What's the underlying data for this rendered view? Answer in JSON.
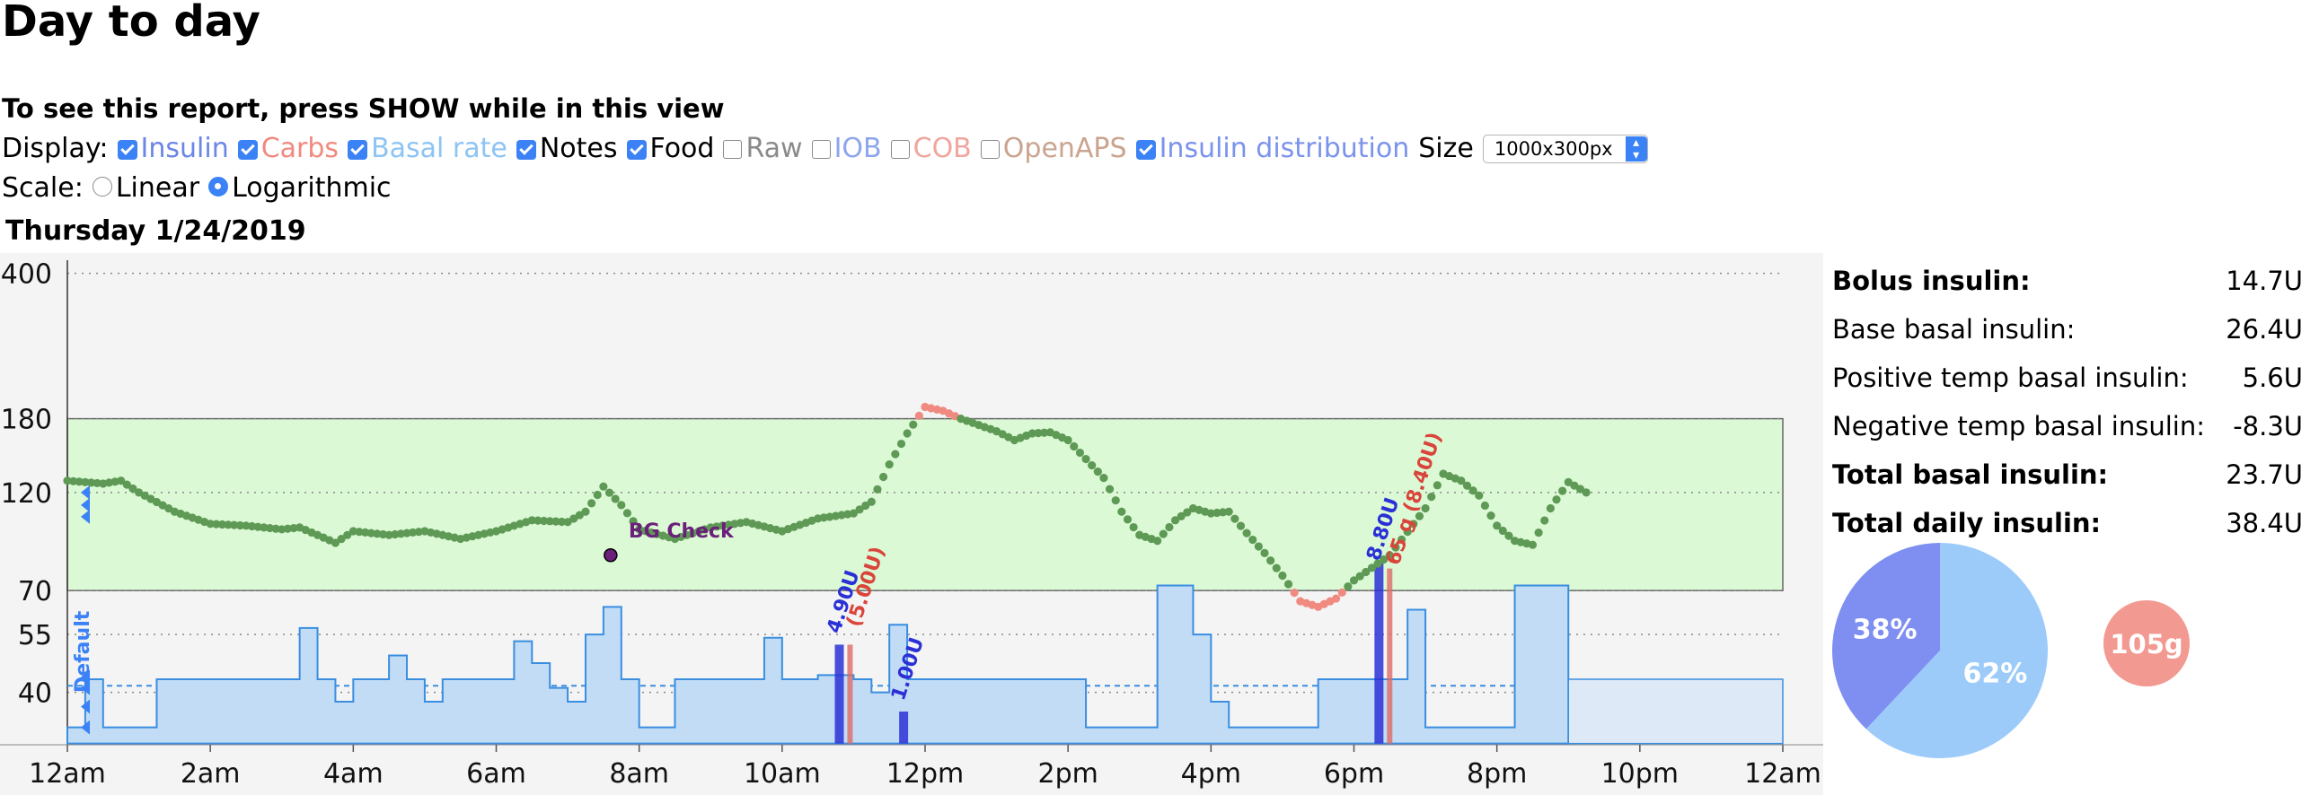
{
  "page": {
    "title": "Day to day",
    "instructions": "To see this report, press SHOW while in this view"
  },
  "display": {
    "label": "Display:",
    "options": [
      {
        "label": "Insulin",
        "checked": true,
        "color": "#6b86e6"
      },
      {
        "label": "Carbs",
        "checked": true,
        "color": "#f08a80"
      },
      {
        "label": "Basal rate",
        "checked": true,
        "color": "#8dc4f4"
      },
      {
        "label": "Notes",
        "checked": true,
        "color": "#000000"
      },
      {
        "label": "Food",
        "checked": true,
        "color": "#000000"
      },
      {
        "label": "Raw",
        "checked": false,
        "color": "#8a8a8a"
      },
      {
        "label": "IOB",
        "checked": false,
        "color": "#8da5ee"
      },
      {
        "label": "COB",
        "checked": false,
        "color": "#f0a59d"
      },
      {
        "label": "OpenAPS",
        "checked": false,
        "color": "#c9a48e"
      },
      {
        "label": "Insulin distribution",
        "checked": true,
        "color": "#7b93ec"
      }
    ],
    "size_label": "Size",
    "size_value": "1000x300px"
  },
  "scale": {
    "label": "Scale:",
    "options": [
      {
        "label": "Linear",
        "selected": false
      },
      {
        "label": "Logarithmic",
        "selected": true
      }
    ]
  },
  "day": {
    "title": "Thursday 1/24/2019"
  },
  "colors": {
    "target_range": "#dcf9d6",
    "glucose_in_range": "#5e9a55",
    "glucose_out_of_range": "#f08a80",
    "basal_fill": "#c2dcf6",
    "basal_stroke": "#3a8ee0",
    "bolus": "#2a30d6",
    "carb_bar": "#e06a66",
    "bolus_pie": "#7e8ff1",
    "basal_pie": "#9ccbfa",
    "carbs_circle": "#f29a91",
    "note": "#6a1f7a"
  },
  "chart_data": {
    "type": "line",
    "y_scale": "log",
    "ylim": [
      30,
      430
    ],
    "y_ticks": [
      "40",
      "55",
      "70",
      "120",
      "180",
      "400"
    ],
    "x_ticks": [
      "12am",
      "2am",
      "4am",
      "6am",
      "8am",
      "10am",
      "12pm",
      "2pm",
      "4pm",
      "6pm",
      "8pm",
      "10pm",
      "12am"
    ],
    "xlim_hours": [
      0,
      24
    ],
    "target_range": [
      70,
      180
    ],
    "glucose": [
      [
        0,
        128
      ],
      [
        0.5,
        126
      ],
      [
        0.75,
        128
      ],
      [
        1,
        120
      ],
      [
        1.5,
        108
      ],
      [
        2,
        101
      ],
      [
        2.5,
        100
      ],
      [
        3,
        98
      ],
      [
        3.25,
        99
      ],
      [
        3.5,
        95
      ],
      [
        3.75,
        91
      ],
      [
        4,
        97
      ],
      [
        4.5,
        95
      ],
      [
        5,
        97
      ],
      [
        5.5,
        93
      ],
      [
        6,
        97
      ],
      [
        6.5,
        103
      ],
      [
        7,
        102
      ],
      [
        7.25,
        108
      ],
      [
        7.5,
        124
      ],
      [
        7.75,
        112
      ],
      [
        8,
        98
      ],
      [
        8.5,
        93
      ],
      [
        9,
        99
      ],
      [
        9.5,
        102
      ],
      [
        10,
        97
      ],
      [
        10.5,
        104
      ],
      [
        11,
        107
      ],
      [
        11.25,
        114
      ],
      [
        11.5,
        140
      ],
      [
        11.75,
        166
      ],
      [
        12,
        192
      ],
      [
        12.25,
        188
      ],
      [
        12.5,
        180
      ],
      [
        13,
        168
      ],
      [
        13.25,
        160
      ],
      [
        13.5,
        166
      ],
      [
        13.75,
        167
      ],
      [
        14,
        160
      ],
      [
        14.5,
        130
      ],
      [
        14.75,
        108
      ],
      [
        15,
        95
      ],
      [
        15.25,
        92
      ],
      [
        15.5,
        103
      ],
      [
        15.75,
        110
      ],
      [
        16,
        107
      ],
      [
        16.25,
        108
      ],
      [
        16.5,
        96
      ],
      [
        16.75,
        86
      ],
      [
        17,
        76
      ],
      [
        17.25,
        66
      ],
      [
        17.5,
        64
      ],
      [
        17.75,
        67
      ],
      [
        18,
        74
      ],
      [
        18.5,
        85
      ],
      [
        19,
        110
      ],
      [
        19.25,
        133
      ],
      [
        19.5,
        128
      ],
      [
        19.75,
        118
      ],
      [
        20,
        100
      ],
      [
        20.25,
        92
      ],
      [
        20.5,
        90
      ],
      [
        20.75,
        110
      ],
      [
        21,
        127
      ],
      [
        21.25,
        120
      ]
    ],
    "basal": [
      [
        0,
        33
      ],
      [
        0.25,
        43
      ],
      [
        0.5,
        33
      ],
      [
        1.25,
        43
      ],
      [
        3,
        43
      ],
      [
        3.25,
        57
      ],
      [
        3.5,
        43
      ],
      [
        3.75,
        38
      ],
      [
        4,
        43
      ],
      [
        4.5,
        49
      ],
      [
        4.75,
        43
      ],
      [
        5,
        38
      ],
      [
        5.25,
        43
      ],
      [
        6,
        43
      ],
      [
        6.25,
        53
      ],
      [
        6.5,
        47
      ],
      [
        6.75,
        41
      ],
      [
        7,
        38
      ],
      [
        7.25,
        55
      ],
      [
        7.5,
        64
      ],
      [
        7.75,
        43
      ],
      [
        8,
        33
      ],
      [
        8.5,
        43
      ],
      [
        9.75,
        54
      ],
      [
        10,
        43
      ],
      [
        10.5,
        44
      ],
      [
        11,
        43
      ],
      [
        11.25,
        40
      ],
      [
        11.5,
        58
      ],
      [
        11.75,
        43
      ],
      [
        14.25,
        33
      ],
      [
        15.25,
        72
      ],
      [
        15.75,
        55
      ],
      [
        16,
        38
      ],
      [
        16.25,
        33
      ],
      [
        17.5,
        43
      ],
      [
        18.75,
        63
      ],
      [
        19,
        33
      ],
      [
        20.25,
        72
      ],
      [
        21,
        43
      ],
      [
        24,
        43
      ]
    ],
    "boluses": [
      {
        "x": 10.8,
        "label": "4.90U"
      },
      {
        "x": 11.7,
        "label": "1.00U"
      },
      {
        "x": 18.35,
        "label": "8.80U"
      }
    ],
    "carbs": [
      {
        "x": 10.95,
        "label": "(5.00U)"
      },
      {
        "x": 18.5,
        "label": "65 g (8.40U)"
      }
    ],
    "notes": [
      {
        "x": 7.6,
        "y": 85,
        "label": "BG Check"
      }
    ],
    "profile_label": "Default",
    "stats": [
      {
        "label": "Bolus insulin:",
        "value": "14.7U",
        "bold": true
      },
      {
        "label": "Base basal insulin:",
        "value": "26.4U",
        "bold": false
      },
      {
        "label": "Positive temp basal insulin:",
        "value": "5.6U",
        "bold": false
      },
      {
        "label": "Negative temp basal insulin:",
        "value": "-8.3U",
        "bold": false
      },
      {
        "label": "Total basal insulin:",
        "value": "23.7U",
        "bold": true
      },
      {
        "label": "Total daily insulin:",
        "value": "38.4U",
        "bold": true
      }
    ],
    "insulin_pie": [
      {
        "name": "Bolus",
        "percent": 38,
        "label": "38%"
      },
      {
        "name": "Basal",
        "percent": 62,
        "label": "62%"
      }
    ],
    "carbs_total": "105g"
  }
}
